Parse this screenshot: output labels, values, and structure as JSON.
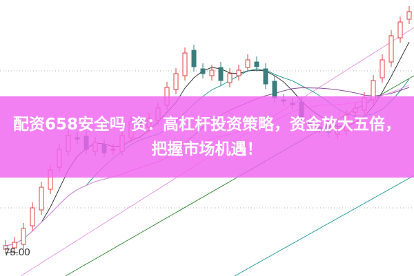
{
  "banner": {
    "title": "配资658安全吗 资：高杠杆投资策略，资金放大五倍，把握市场机遇！"
  },
  "chart_data": {
    "type": "candlestick",
    "title": "",
    "price_marker": "75.00",
    "close": [
      76.0,
      76.5,
      78.5,
      81.5,
      84.5,
      87.0,
      90.0,
      92.0,
      91.5,
      90.0,
      91.0,
      89.5,
      90.0,
      92.0,
      94.0,
      93.5,
      94.5,
      96.0,
      99.0,
      101.0,
      104.0,
      102.0,
      101.0,
      101.5,
      100.0,
      101.0,
      101.5,
      103.0,
      102.0,
      99.5,
      97.5,
      97.0,
      96.5,
      94.5,
      93.5,
      93.0,
      92.5,
      93.0,
      95.0,
      96.0,
      97.5,
      100.0,
      103.0,
      106.5,
      108.5,
      110.0
    ],
    "moving_averages": [
      5,
      10,
      20,
      30
    ],
    "grid": "dotted horizontal",
    "colors": {
      "up": "#e03c3c",
      "down": "#3c7c7c",
      "ma5": "#333333",
      "ma10": "#2a9a9a",
      "ma20": "#8a4a9a",
      "ma30": "#e59ae5",
      "banner": "#f064f0"
    }
  }
}
